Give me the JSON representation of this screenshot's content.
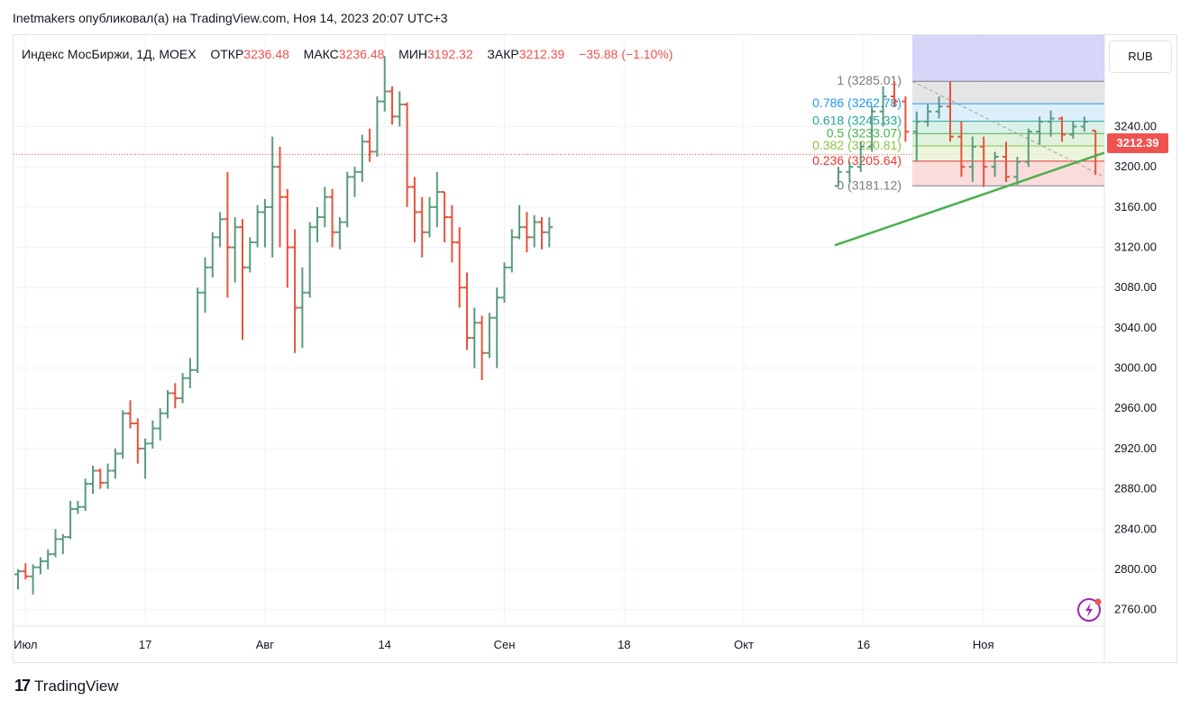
{
  "header": {
    "published": "Inetmakers опубликовал(а) на TradingView.com, Ноя 14, 2023 20:07 UTC+3"
  },
  "legend": {
    "symbol": "Индекс МосБиржи, 1Д, MOEX",
    "open_label": "ОТКР",
    "open": "3236.48",
    "high_label": "МАКС",
    "high": "3236.48",
    "low_label": "МИН",
    "low": "3192.32",
    "close_label": "ЗАКР",
    "close": "3212.39",
    "change": "−35.88 (−1.10%)"
  },
  "currency": "RUB",
  "last_price": "3212.39",
  "footer": {
    "brand": "TradingView",
    "logo": "17"
  },
  "colors": {
    "up": "#5b9a7d",
    "down": "#e5533d",
    "trend": "#4caf50",
    "fib_top": "#c8c8f5"
  },
  "chart_data": {
    "type": "ohlc-bar",
    "title": "Индекс МосБиржи, 1Д, MOEX",
    "ylim": [
      2748,
      3330
    ],
    "y_ticks": [
      2760,
      2800,
      2840,
      2880,
      2920,
      2960,
      3000,
      3040,
      3080,
      3120,
      3160,
      3200,
      3240
    ],
    "y_tick_labels": [
      "2760.00",
      "2800.00",
      "2840.00",
      "2880.00",
      "2920.00",
      "2960.00",
      "3000.00",
      "3040.00",
      "3080.00",
      "3120.00",
      "3160.00",
      "3200.00",
      "3240.00"
    ],
    "x_tick_labels": [
      "Июл",
      "17",
      "Авг",
      "14",
      "Сен",
      "18",
      "Окт",
      "16",
      "Ноя"
    ],
    "x_tick_index": [
      1,
      17,
      33,
      49,
      65,
      81,
      97,
      113,
      129
    ],
    "bars": [
      [
        2795,
        2800,
        2780,
        2798
      ],
      [
        2798,
        2806,
        2790,
        2793
      ],
      [
        2793,
        2805,
        2775,
        2802
      ],
      [
        2802,
        2812,
        2795,
        2808
      ],
      [
        2808,
        2820,
        2800,
        2815
      ],
      [
        2815,
        2840,
        2812,
        2830
      ],
      [
        2830,
        2835,
        2815,
        2832
      ],
      [
        2832,
        2868,
        2830,
        2860
      ],
      [
        2860,
        2868,
        2855,
        2862
      ],
      [
        2862,
        2890,
        2858,
        2885
      ],
      [
        2885,
        2903,
        2875,
        2898
      ],
      [
        2898,
        2900,
        2880,
        2886
      ],
      [
        2886,
        2905,
        2880,
        2898
      ],
      [
        2898,
        2920,
        2890,
        2915
      ],
      [
        2915,
        2958,
        2910,
        2955
      ],
      [
        2955,
        2968,
        2940,
        2945
      ],
      [
        2945,
        2950,
        2905,
        2920
      ],
      [
        2920,
        2930,
        2890,
        2925
      ],
      [
        2925,
        2948,
        2920,
        2940
      ],
      [
        2940,
        2960,
        2928,
        2955
      ],
      [
        2955,
        2978,
        2950,
        2975
      ],
      [
        2975,
        2985,
        2960,
        2970
      ],
      [
        2970,
        2995,
        2965,
        2990
      ],
      [
        2990,
        3010,
        2980,
        2998
      ],
      [
        2998,
        3080,
        2995,
        3075
      ],
      [
        3075,
        3110,
        3055,
        3100
      ],
      [
        3100,
        3135,
        3090,
        3130
      ],
      [
        3130,
        3155,
        3120,
        3148
      ],
      [
        3148,
        3195,
        3070,
        3120
      ],
      [
        3120,
        3150,
        3085,
        3140
      ],
      [
        3140,
        3148,
        3028,
        3100
      ],
      [
        3100,
        3130,
        3095,
        3125
      ],
      [
        3125,
        3162,
        3120,
        3155
      ],
      [
        3155,
        3168,
        3120,
        3160
      ],
      [
        3160,
        3230,
        3110,
        3200
      ],
      [
        3200,
        3220,
        3120,
        3170
      ],
      [
        3170,
        3178,
        3080,
        3120
      ],
      [
        3120,
        3138,
        3015,
        3060
      ],
      [
        3060,
        3100,
        3020,
        3075
      ],
      [
        3075,
        3145,
        3070,
        3140
      ],
      [
        3140,
        3160,
        3125,
        3150
      ],
      [
        3150,
        3180,
        3140,
        3170
      ],
      [
        3170,
        3178,
        3120,
        3135
      ],
      [
        3135,
        3150,
        3118,
        3145
      ],
      [
        3145,
        3195,
        3140,
        3190
      ],
      [
        3190,
        3200,
        3170,
        3195
      ],
      [
        3195,
        3232,
        3185,
        3225
      ],
      [
        3225,
        3238,
        3205,
        3215
      ],
      [
        3215,
        3270,
        3210,
        3265
      ],
      [
        3265,
        3310,
        3255,
        3275
      ],
      [
        3275,
        3280,
        3242,
        3250
      ],
      [
        3250,
        3275,
        3240,
        3262
      ],
      [
        3262,
        3264,
        3160,
        3180
      ],
      [
        3180,
        3190,
        3125,
        3155
      ],
      [
        3155,
        3170,
        3110,
        3135
      ],
      [
        3135,
        3170,
        3130,
        3160
      ],
      [
        3160,
        3195,
        3140,
        3175
      ],
      [
        3175,
        3175,
        3125,
        3150
      ],
      [
        3150,
        3162,
        3105,
        3125
      ],
      [
        3125,
        3140,
        3060,
        3080
      ],
      [
        3080,
        3095,
        3018,
        3030
      ],
      [
        3030,
        3060,
        3000,
        3045
      ],
      [
        3045,
        3052,
        2988,
        3015
      ],
      [
        3015,
        3055,
        3010,
        3050
      ],
      [
        3050,
        3080,
        3000,
        3070
      ],
      [
        3070,
        3105,
        3065,
        3100
      ],
      [
        3100,
        3138,
        3095,
        3130
      ],
      [
        3130,
        3162,
        3128,
        3140
      ],
      [
        3140,
        3155,
        3115,
        3130
      ],
      [
        3130,
        3152,
        3120,
        3145
      ],
      [
        3145,
        3150,
        3118,
        3135
      ],
      [
        3135,
        3150,
        3120,
        3140
      ]
    ],
    "fib_levels": [
      {
        "ratio": "1",
        "value": "3285.01",
        "color": "#787b86"
      },
      {
        "ratio": "0.786",
        "value": "3262.78",
        "color": "#2196f3"
      },
      {
        "ratio": "0.618",
        "value": "3245.33",
        "color": "#26a69a"
      },
      {
        "ratio": "0.5",
        "value": "3233.07",
        "color": "#4caf50"
      },
      {
        "ratio": "0.382",
        "value": "3220.81",
        "color": "#8bc34a"
      },
      {
        "ratio": "0.236",
        "value": "3205.64",
        "color": "#e53935"
      },
      {
        "ratio": "0",
        "value": "3181.12",
        "color": "#787b86"
      }
    ]
  }
}
